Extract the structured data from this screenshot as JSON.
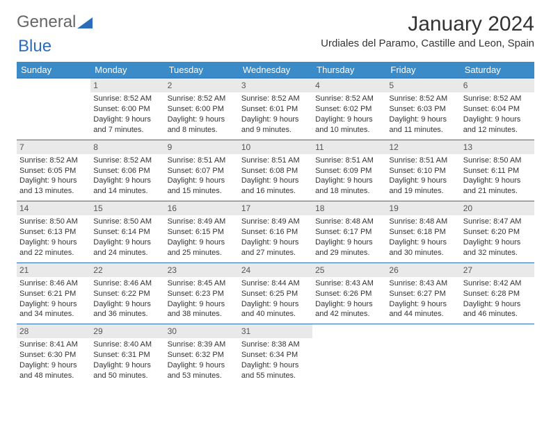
{
  "logo": {
    "text1": "General",
    "text2": "Blue"
  },
  "title": "January 2024",
  "subtitle": "Urdiales del Paramo, Castille and Leon, Spain",
  "colors": {
    "header_bg": "#3b8bc9",
    "header_text": "#ffffff",
    "row_divider": "#2a6ebb",
    "daynum_bg": "#e9e9e9",
    "logo_accent": "#2a6ebb"
  },
  "weekdays": [
    "Sunday",
    "Monday",
    "Tuesday",
    "Wednesday",
    "Thursday",
    "Friday",
    "Saturday"
  ],
  "weeks": [
    [
      {
        "empty": true
      },
      {
        "day": "1",
        "l1": "Sunrise: 8:52 AM",
        "l2": "Sunset: 6:00 PM",
        "l3": "Daylight: 9 hours",
        "l4": "and 7 minutes."
      },
      {
        "day": "2",
        "l1": "Sunrise: 8:52 AM",
        "l2": "Sunset: 6:00 PM",
        "l3": "Daylight: 9 hours",
        "l4": "and 8 minutes."
      },
      {
        "day": "3",
        "l1": "Sunrise: 8:52 AM",
        "l2": "Sunset: 6:01 PM",
        "l3": "Daylight: 9 hours",
        "l4": "and 9 minutes."
      },
      {
        "day": "4",
        "l1": "Sunrise: 8:52 AM",
        "l2": "Sunset: 6:02 PM",
        "l3": "Daylight: 9 hours",
        "l4": "and 10 minutes."
      },
      {
        "day": "5",
        "l1": "Sunrise: 8:52 AM",
        "l2": "Sunset: 6:03 PM",
        "l3": "Daylight: 9 hours",
        "l4": "and 11 minutes."
      },
      {
        "day": "6",
        "l1": "Sunrise: 8:52 AM",
        "l2": "Sunset: 6:04 PM",
        "l3": "Daylight: 9 hours",
        "l4": "and 12 minutes."
      }
    ],
    [
      {
        "day": "7",
        "l1": "Sunrise: 8:52 AM",
        "l2": "Sunset: 6:05 PM",
        "l3": "Daylight: 9 hours",
        "l4": "and 13 minutes."
      },
      {
        "day": "8",
        "l1": "Sunrise: 8:52 AM",
        "l2": "Sunset: 6:06 PM",
        "l3": "Daylight: 9 hours",
        "l4": "and 14 minutes."
      },
      {
        "day": "9",
        "l1": "Sunrise: 8:51 AM",
        "l2": "Sunset: 6:07 PM",
        "l3": "Daylight: 9 hours",
        "l4": "and 15 minutes."
      },
      {
        "day": "10",
        "l1": "Sunrise: 8:51 AM",
        "l2": "Sunset: 6:08 PM",
        "l3": "Daylight: 9 hours",
        "l4": "and 16 minutes."
      },
      {
        "day": "11",
        "l1": "Sunrise: 8:51 AM",
        "l2": "Sunset: 6:09 PM",
        "l3": "Daylight: 9 hours",
        "l4": "and 18 minutes."
      },
      {
        "day": "12",
        "l1": "Sunrise: 8:51 AM",
        "l2": "Sunset: 6:10 PM",
        "l3": "Daylight: 9 hours",
        "l4": "and 19 minutes."
      },
      {
        "day": "13",
        "l1": "Sunrise: 8:50 AM",
        "l2": "Sunset: 6:11 PM",
        "l3": "Daylight: 9 hours",
        "l4": "and 21 minutes."
      }
    ],
    [
      {
        "day": "14",
        "l1": "Sunrise: 8:50 AM",
        "l2": "Sunset: 6:13 PM",
        "l3": "Daylight: 9 hours",
        "l4": "and 22 minutes."
      },
      {
        "day": "15",
        "l1": "Sunrise: 8:50 AM",
        "l2": "Sunset: 6:14 PM",
        "l3": "Daylight: 9 hours",
        "l4": "and 24 minutes."
      },
      {
        "day": "16",
        "l1": "Sunrise: 8:49 AM",
        "l2": "Sunset: 6:15 PM",
        "l3": "Daylight: 9 hours",
        "l4": "and 25 minutes."
      },
      {
        "day": "17",
        "l1": "Sunrise: 8:49 AM",
        "l2": "Sunset: 6:16 PM",
        "l3": "Daylight: 9 hours",
        "l4": "and 27 minutes."
      },
      {
        "day": "18",
        "l1": "Sunrise: 8:48 AM",
        "l2": "Sunset: 6:17 PM",
        "l3": "Daylight: 9 hours",
        "l4": "and 29 minutes."
      },
      {
        "day": "19",
        "l1": "Sunrise: 8:48 AM",
        "l2": "Sunset: 6:18 PM",
        "l3": "Daylight: 9 hours",
        "l4": "and 30 minutes."
      },
      {
        "day": "20",
        "l1": "Sunrise: 8:47 AM",
        "l2": "Sunset: 6:20 PM",
        "l3": "Daylight: 9 hours",
        "l4": "and 32 minutes."
      }
    ],
    [
      {
        "day": "21",
        "l1": "Sunrise: 8:46 AM",
        "l2": "Sunset: 6:21 PM",
        "l3": "Daylight: 9 hours",
        "l4": "and 34 minutes."
      },
      {
        "day": "22",
        "l1": "Sunrise: 8:46 AM",
        "l2": "Sunset: 6:22 PM",
        "l3": "Daylight: 9 hours",
        "l4": "and 36 minutes."
      },
      {
        "day": "23",
        "l1": "Sunrise: 8:45 AM",
        "l2": "Sunset: 6:23 PM",
        "l3": "Daylight: 9 hours",
        "l4": "and 38 minutes."
      },
      {
        "day": "24",
        "l1": "Sunrise: 8:44 AM",
        "l2": "Sunset: 6:25 PM",
        "l3": "Daylight: 9 hours",
        "l4": "and 40 minutes."
      },
      {
        "day": "25",
        "l1": "Sunrise: 8:43 AM",
        "l2": "Sunset: 6:26 PM",
        "l3": "Daylight: 9 hours",
        "l4": "and 42 minutes."
      },
      {
        "day": "26",
        "l1": "Sunrise: 8:43 AM",
        "l2": "Sunset: 6:27 PM",
        "l3": "Daylight: 9 hours",
        "l4": "and 44 minutes."
      },
      {
        "day": "27",
        "l1": "Sunrise: 8:42 AM",
        "l2": "Sunset: 6:28 PM",
        "l3": "Daylight: 9 hours",
        "l4": "and 46 minutes."
      }
    ],
    [
      {
        "day": "28",
        "l1": "Sunrise: 8:41 AM",
        "l2": "Sunset: 6:30 PM",
        "l3": "Daylight: 9 hours",
        "l4": "and 48 minutes."
      },
      {
        "day": "29",
        "l1": "Sunrise: 8:40 AM",
        "l2": "Sunset: 6:31 PM",
        "l3": "Daylight: 9 hours",
        "l4": "and 50 minutes."
      },
      {
        "day": "30",
        "l1": "Sunrise: 8:39 AM",
        "l2": "Sunset: 6:32 PM",
        "l3": "Daylight: 9 hours",
        "l4": "and 53 minutes."
      },
      {
        "day": "31",
        "l1": "Sunrise: 8:38 AM",
        "l2": "Sunset: 6:34 PM",
        "l3": "Daylight: 9 hours",
        "l4": "and 55 minutes."
      },
      {
        "empty": true
      },
      {
        "empty": true
      },
      {
        "empty": true
      }
    ]
  ]
}
